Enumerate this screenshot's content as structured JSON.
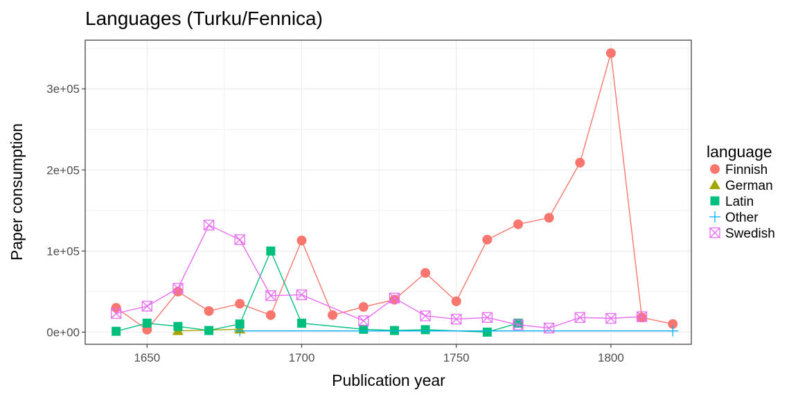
{
  "chart_data": {
    "type": "line",
    "title": "Languages (Turku/Fennica)",
    "xlabel": "Publication year",
    "ylabel": "Paper consumption",
    "xlim": [
      1630,
      1826
    ],
    "ylim": [
      -15000,
      360000
    ],
    "xticks": [
      1650,
      1700,
      1750,
      1800
    ],
    "yticks": [
      0,
      100000,
      200000,
      300000
    ],
    "ytick_labels": [
      "0e+00",
      "1e+05",
      "2e+05",
      "3e+05"
    ],
    "grid": true,
    "legend_title": "language",
    "legend_position": "right",
    "series": [
      {
        "name": "Finnish",
        "color": "#F8766D",
        "marker": "circle",
        "points": [
          [
            1640,
            30000
          ],
          [
            1650,
            3000
          ],
          [
            1660,
            50000
          ],
          [
            1670,
            26000
          ],
          [
            1680,
            35000
          ],
          [
            1690,
            21000
          ],
          [
            1700,
            113000
          ],
          [
            1710,
            21000
          ],
          [
            1720,
            31000
          ],
          [
            1730,
            40000
          ],
          [
            1740,
            73000
          ],
          [
            1750,
            38000
          ],
          [
            1760,
            114000
          ],
          [
            1770,
            133000
          ],
          [
            1780,
            141000
          ],
          [
            1790,
            209000
          ],
          [
            1800,
            344000
          ],
          [
            1810,
            18000
          ],
          [
            1820,
            10000
          ]
        ]
      },
      {
        "name": "German",
        "color": "#A3A500",
        "marker": "triangle",
        "points": [
          [
            1660,
            1500
          ],
          [
            1680,
            3500
          ]
        ]
      },
      {
        "name": "Latin",
        "color": "#00BF7D",
        "marker": "square",
        "points": [
          [
            1640,
            1000
          ],
          [
            1650,
            11000
          ],
          [
            1660,
            7000
          ],
          [
            1670,
            2000
          ],
          [
            1680,
            10000
          ],
          [
            1690,
            100000
          ],
          [
            1700,
            11000
          ],
          [
            1720,
            3500
          ],
          [
            1730,
            2000
          ],
          [
            1740,
            3000
          ],
          [
            1760,
            0
          ],
          [
            1770,
            11000
          ]
        ]
      },
      {
        "name": "Other",
        "color": "#00B0F6",
        "marker": "plus",
        "points": [
          [
            1680,
            1500
          ],
          [
            1820,
            1500
          ]
        ]
      },
      {
        "name": "Swedish",
        "color": "#E76BF3",
        "marker": "boxcross",
        "points": [
          [
            1640,
            23000
          ],
          [
            1650,
            32000
          ],
          [
            1660,
            54000
          ],
          [
            1670,
            132000
          ],
          [
            1680,
            114000
          ],
          [
            1690,
            45000
          ],
          [
            1700,
            46000
          ],
          [
            1720,
            14000
          ],
          [
            1730,
            42000
          ],
          [
            1740,
            20000
          ],
          [
            1750,
            16000
          ],
          [
            1760,
            18000
          ],
          [
            1770,
            9000
          ],
          [
            1780,
            5000
          ],
          [
            1790,
            18000
          ],
          [
            1800,
            17000
          ],
          [
            1810,
            19000
          ]
        ]
      }
    ]
  }
}
